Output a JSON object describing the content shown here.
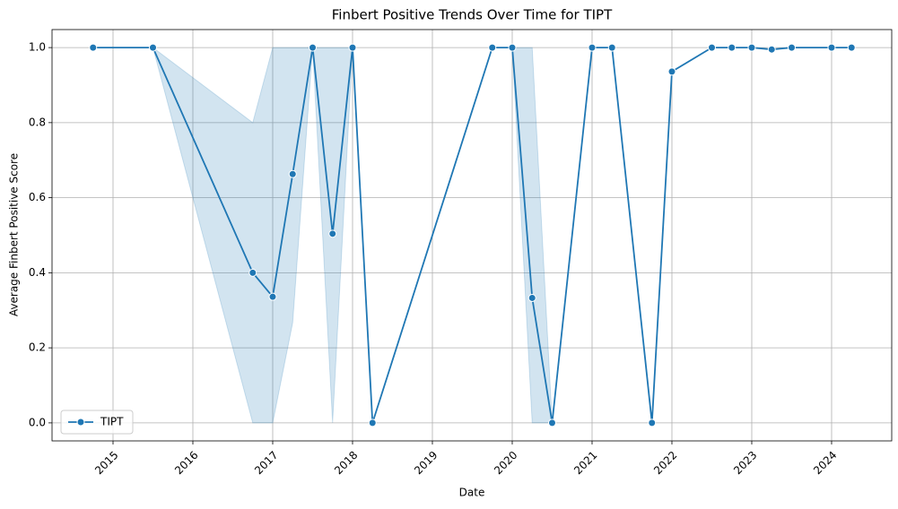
{
  "chart_data": {
    "type": "line",
    "title": "Finbert Positive Trends Over Time for TIPT",
    "x_label": "Date",
    "y_label": "Average Finbert Positive Score",
    "xlim": [
      2014.236,
      2024.753
    ],
    "ylim": [
      -0.048,
      1.048
    ],
    "xticks": [
      2015,
      2016,
      2017,
      2018,
      2019,
      2020,
      2021,
      2022,
      2023,
      2024
    ],
    "yticks": [
      {
        "value": 0,
        "label": "0.0"
      },
      0.2,
      0.4,
      0.6,
      0.8,
      {
        "value": 1,
        "label": "1.0"
      }
    ],
    "grid": true,
    "legend": "lower left",
    "series": [
      {
        "name": "TIPT",
        "color": "#1f77b4",
        "x": [
          2014.75,
          2015.5,
          2016.75,
          2017.0,
          2017.25,
          2017.5,
          2017.75,
          2018.0,
          2018.25,
          2019.75,
          2020.0,
          2020.25,
          2020.5,
          2021.0,
          2021.25,
          2021.75,
          2022.0,
          2022.5,
          2022.75,
          2023.0,
          2023.25,
          2023.5,
          2024.0,
          2024.25
        ],
        "values": [
          1.0,
          1.0,
          0.4,
          0.336,
          0.663,
          1.0,
          0.504,
          1.0,
          0.0,
          1.0,
          1.0,
          0.333,
          0.0,
          1.0,
          1.0,
          0.0,
          0.936,
          1.0,
          1.0,
          1.0,
          0.995,
          1.0,
          1.0,
          1.0
        ],
        "ci_lower": [
          1.0,
          1.0,
          0.0,
          0.0,
          0.267,
          1.0,
          0.0,
          1.0,
          0.0,
          1.0,
          1.0,
          0.0,
          0.0,
          1.0,
          1.0,
          0.0,
          0.936,
          1.0,
          1.0,
          1.0,
          0.995,
          1.0,
          1.0,
          1.0
        ],
        "ci_upper": [
          1.0,
          1.0,
          0.8,
          1.0,
          1.0,
          1.0,
          1.0,
          1.0,
          0.0,
          1.0,
          1.0,
          1.0,
          0.0,
          1.0,
          1.0,
          0.0,
          0.936,
          1.0,
          1.0,
          1.0,
          0.995,
          1.0,
          1.0,
          1.0
        ]
      }
    ]
  }
}
